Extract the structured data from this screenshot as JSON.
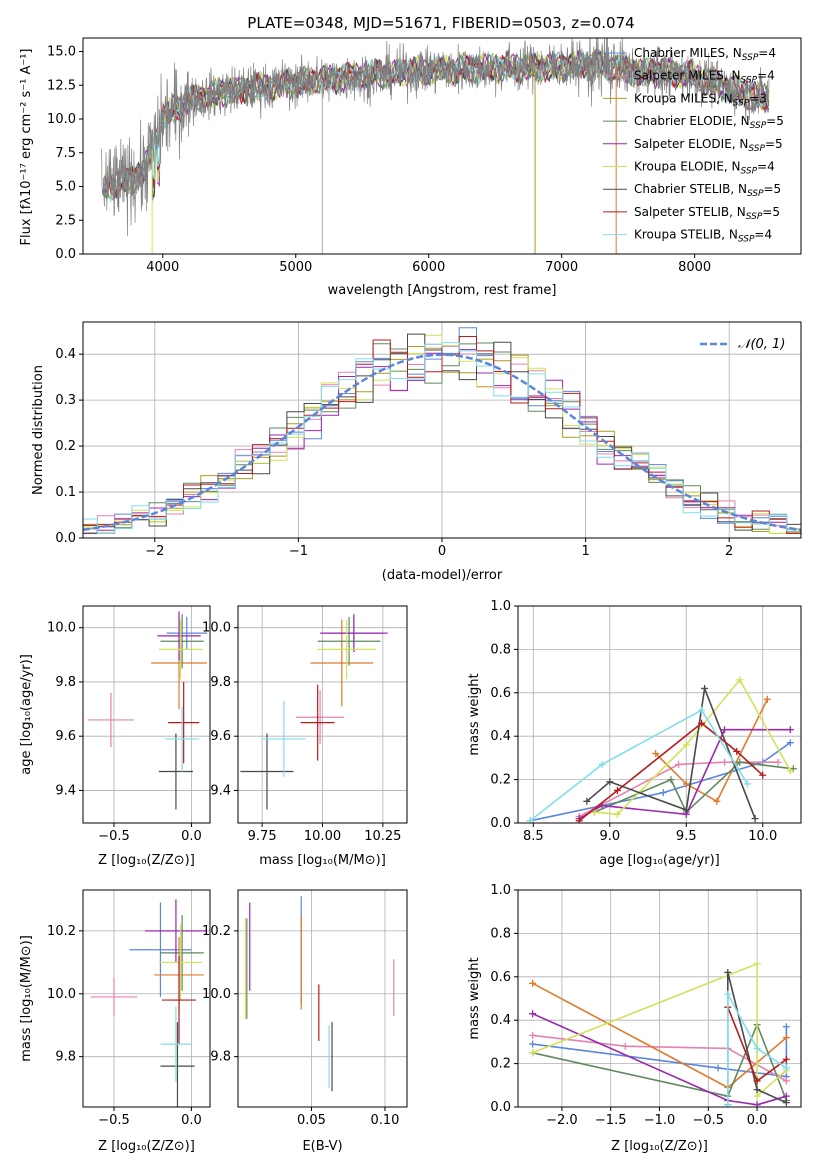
{
  "chart_data": [
    {
      "id": "spectrum",
      "type": "line",
      "title": "PLATE=0348, MJD=51671, FIBERID=0503, z=0.074",
      "xlabel": "wavelength [Angstrom, rest frame]",
      "ylabel": "Flux [fλ10⁻¹⁷ erg cm⁻² s⁻¹ A⁻¹]",
      "xlim": [
        3400,
        8800
      ],
      "ylim": [
        0,
        16
      ],
      "xticks": [
        "4000",
        "5000",
        "6000",
        "7000",
        "8000"
      ],
      "yticks": [
        "0.0",
        "2.5",
        "5.0",
        "7.5",
        "10.0",
        "12.5",
        "15.0"
      ],
      "grid": false,
      "legend_position": "right",
      "data_color": "#808080",
      "continuum": {
        "x": [
          3550,
          3700,
          3850,
          3950,
          4000,
          4100,
          4200,
          4300,
          4500,
          4800,
          5000,
          5300,
          5600,
          6000,
          6500,
          7000,
          7300,
          7500,
          7800,
          8000,
          8200,
          8500
        ],
        "y": [
          5.0,
          5.3,
          6.0,
          8.5,
          10.0,
          10.8,
          11.4,
          11.6,
          12.1,
          12.4,
          12.7,
          13.0,
          13.3,
          13.6,
          13.8,
          13.9,
          14.0,
          13.6,
          13.4,
          13.2,
          12.4,
          11.6
        ]
      },
      "series": [
        {
          "name": "Chabrier MILES, N$_{SSP}$=4",
          "label_main": "Chabrier MILES, N",
          "label_sub": "SSP",
          "label_tail": "=4",
          "color": "#5b86e0"
        },
        {
          "name": "Salpeter MILES, N$_{SSP}$=4",
          "label_main": "Salpeter MILES, N",
          "label_sub": "SSP",
          "label_tail": "=4",
          "color": "#e680b0"
        },
        {
          "name": "Kroupa MILES, N$_{SSP}$=3",
          "label_main": "Kroupa MILES, N",
          "label_sub": "SSP",
          "label_tail": "=3",
          "color": "#b09a1f"
        },
        {
          "name": "Chabrier ELODIE, N$_{SSP}$=5",
          "label_main": "Chabrier ELODIE, N",
          "label_sub": "SSP",
          "label_tail": "=5",
          "color": "#5e8a5e"
        },
        {
          "name": "Salpeter ELODIE, N$_{SSP}$=5",
          "label_main": "Salpeter ELODIE, N",
          "label_sub": "SSP",
          "label_tail": "=5",
          "color": "#9c27b0"
        },
        {
          "name": "Kroupa ELODIE, N$_{SSP}$=4",
          "label_main": "Kroupa ELODIE, N",
          "label_sub": "SSP",
          "label_tail": "=4",
          "color": "#d4e157"
        },
        {
          "name": "Chabrier STELIB, N$_{SSP}$=5",
          "label_main": "Chabrier STELIB, N",
          "label_sub": "SSP",
          "label_tail": "=5",
          "color": "#4a4a4a"
        },
        {
          "name": "Salpeter STELIB, N$_{SSP}$=5",
          "label_main": "Salpeter STELIB, N",
          "label_sub": "SSP",
          "label_tail": "=5",
          "color": "#b71c1c"
        },
        {
          "name": "Kroupa STELIB, N$_{SSP}$=4",
          "label_main": "Kroupa STELIB, N",
          "label_sub": "SSP",
          "label_tail": "=4",
          "color": "#80deea"
        }
      ]
    },
    {
      "id": "residuals",
      "type": "line",
      "xlabel": "(data-model)/error",
      "ylabel": "Normed distribution",
      "xlim": [
        -2.5,
        2.5
      ],
      "ylim": [
        0,
        0.47
      ],
      "xticks": [
        "−2",
        "−1",
        "0",
        "1",
        "2"
      ],
      "yticks": [
        "0.0",
        "0.1",
        "0.2",
        "0.3",
        "0.4"
      ],
      "grid": true,
      "legend_position": "top-right",
      "gaussian_label": "𝒩(0, 1)",
      "gaussian_color": "#5b86e0",
      "bin_width": 0.12
    },
    {
      "id": "age_vs_Z",
      "type": "scatter",
      "xlabel": "Z [log₁₀(Z/Z⊙)]",
      "ylabel": "age  [log₁₀(age/yr)]",
      "xlim": [
        -0.7,
        0.12
      ],
      "ylim": [
        9.28,
        10.08
      ],
      "xticks": [
        -0.5,
        0.0
      ],
      "xtick_labels": [
        "−0.5",
        "0.0"
      ],
      "yticks": [
        9.4,
        9.6,
        9.8,
        10.0
      ],
      "ytick_labels": [
        "9.4",
        "9.6",
        "9.8",
        "10.0"
      ],
      "grid": true,
      "points": [
        {
          "x": -0.03,
          "y": 9.98,
          "xerr": 0.13,
          "yerr": 0.06,
          "color": "#5b86e0"
        },
        {
          "x": -0.52,
          "y": 9.66,
          "xerr": 0.15,
          "yerr": 0.1,
          "color": "#e680b0"
        },
        {
          "x": -0.08,
          "y": 9.87,
          "xerr": 0.18,
          "yerr": 0.17,
          "color": "#e07a2a"
        },
        {
          "x": -0.06,
          "y": 9.95,
          "xerr": 0.14,
          "yerr": 0.1,
          "color": "#5e8a5e"
        },
        {
          "x": -0.08,
          "y": 9.97,
          "xerr": 0.14,
          "yerr": 0.09,
          "color": "#9c27b0"
        },
        {
          "x": -0.07,
          "y": 9.92,
          "xerr": 0.14,
          "yerr": 0.11,
          "color": "#d4e157"
        },
        {
          "x": -0.1,
          "y": 9.47,
          "xerr": 0.11,
          "yerr": 0.14,
          "color": "#4a4a4a"
        },
        {
          "x": -0.05,
          "y": 9.65,
          "xerr": 0.1,
          "yerr": 0.15,
          "color": "#b71c1c"
        },
        {
          "x": -0.06,
          "y": 9.59,
          "xerr": 0.11,
          "yerr": 0.12,
          "color": "#80deea"
        }
      ]
    },
    {
      "id": "age_vs_mass",
      "type": "scatter",
      "xlabel": "mass [log₁₀(M/M⊙)]",
      "xlim": [
        9.65,
        10.35
      ],
      "ylim": [
        9.28,
        10.08
      ],
      "xticks": [
        9.75,
        10.0,
        10.25
      ],
      "xtick_labels": [
        "9.75",
        "10.00",
        "10.25"
      ],
      "yticks": [
        9.4,
        9.6,
        9.8,
        10.0
      ],
      "ytick_labels": [
        "9.4",
        "9.6",
        "9.8",
        "10.0"
      ],
      "grid": true,
      "points": [
        {
          "x": 10.13,
          "y": 9.98,
          "xerr": 0.12,
          "yerr": 0.06,
          "color": "#5b86e0"
        },
        {
          "x": 9.99,
          "y": 9.67,
          "xerr": 0.1,
          "yerr": 0.1,
          "color": "#e680b0"
        },
        {
          "x": 10.08,
          "y": 9.87,
          "xerr": 0.13,
          "yerr": 0.16,
          "color": "#e07a2a"
        },
        {
          "x": 10.11,
          "y": 9.95,
          "xerr": 0.13,
          "yerr": 0.09,
          "color": "#5e8a5e"
        },
        {
          "x": 10.13,
          "y": 9.98,
          "xerr": 0.14,
          "yerr": 0.07,
          "color": "#9c27b0"
        },
        {
          "x": 10.1,
          "y": 9.92,
          "xerr": 0.12,
          "yerr": 0.11,
          "color": "#d4e157"
        },
        {
          "x": 9.77,
          "y": 9.47,
          "xerr": 0.11,
          "yerr": 0.14,
          "color": "#4a4a4a"
        },
        {
          "x": 9.98,
          "y": 9.65,
          "xerr": 0.07,
          "yerr": 0.14,
          "color": "#b71c1c"
        },
        {
          "x": 9.84,
          "y": 9.59,
          "xerr": 0.09,
          "yerr": 0.14,
          "color": "#80deea"
        }
      ]
    },
    {
      "id": "weight_vs_age",
      "type": "line",
      "xlabel": "age  [log₁₀(age/yr)]",
      "ylabel": "mass weight",
      "xlim": [
        8.4,
        10.25
      ],
      "ylim": [
        0,
        1
      ],
      "xticks": [
        8.5,
        9.0,
        9.5,
        10.0
      ],
      "xtick_labels": [
        "8.5",
        "9.0",
        "9.5",
        "10.0"
      ],
      "yticks": [
        0,
        0.2,
        0.4,
        0.6,
        0.8,
        1.0
      ],
      "ytick_labels": [
        "0.0",
        "0.2",
        "0.4",
        "0.6",
        "0.8",
        "1.0"
      ],
      "grid": true,
      "series": [
        {
          "color": "#5b86e0",
          "x": [
            8.48,
            9.35,
            10.0,
            10.18
          ],
          "y": [
            0.01,
            0.14,
            0.28,
            0.37
          ]
        },
        {
          "color": "#e680b0",
          "x": [
            8.8,
            9.45,
            9.75,
            10.1
          ],
          "y": [
            0.03,
            0.27,
            0.28,
            0.28
          ]
        },
        {
          "color": "#e07a2a",
          "x": [
            9.3,
            9.5,
            9.7,
            10.03
          ],
          "y": [
            0.32,
            0.18,
            0.1,
            0.57
          ]
        },
        {
          "color": "#5e8a5e",
          "x": [
            8.9,
            9.4,
            9.5,
            9.85,
            10.2
          ],
          "y": [
            0.05,
            0.2,
            0.05,
            0.28,
            0.25
          ]
        },
        {
          "color": "#9c27b0",
          "x": [
            8.8,
            8.95,
            9.5,
            9.75,
            10.18
          ],
          "y": [
            0.02,
            0.08,
            0.04,
            0.43,
            0.43
          ]
        },
        {
          "color": "#d4e157",
          "x": [
            8.9,
            9.05,
            9.5,
            9.85,
            10.18
          ],
          "y": [
            0.05,
            0.04,
            0.36,
            0.66,
            0.24
          ]
        },
        {
          "color": "#4a4a4a",
          "x": [
            8.85,
            9.0,
            9.5,
            9.62,
            9.95
          ],
          "y": [
            0.1,
            0.19,
            0.06,
            0.62,
            0.02
          ]
        },
        {
          "color": "#b71c1c",
          "x": [
            8.8,
            9.05,
            9.6,
            9.83,
            10.0
          ],
          "y": [
            0.01,
            0.15,
            0.46,
            0.33,
            0.22
          ]
        },
        {
          "color": "#80deea",
          "x": [
            8.48,
            8.95,
            9.6,
            9.9
          ],
          "y": [
            0.01,
            0.27,
            0.52,
            0.18
          ]
        }
      ]
    },
    {
      "id": "mass_vs_Z",
      "type": "scatter",
      "xlabel": "Z [log₁₀(Z/Z⊙)]",
      "ylabel": "mass [log₁₀(M/M⊙)]",
      "xlim": [
        -0.7,
        0.12
      ],
      "ylim": [
        9.64,
        10.33
      ],
      "xticks": [
        -0.5,
        0.0
      ],
      "xtick_labels": [
        "−0.5",
        "0.0"
      ],
      "yticks": [
        9.8,
        10.0,
        10.2
      ],
      "ytick_labels": [
        "9.8",
        "10.0",
        "10.2"
      ],
      "grid": true,
      "points": [
        {
          "x": -0.2,
          "y": 10.14,
          "xerr": 0.2,
          "yerr": 0.15,
          "color": "#5b86e0"
        },
        {
          "x": -0.5,
          "y": 9.99,
          "xerr": 0.15,
          "yerr": 0.06,
          "color": "#e680b0"
        },
        {
          "x": -0.08,
          "y": 10.06,
          "xerr": 0.16,
          "yerr": 0.12,
          "color": "#e07a2a"
        },
        {
          "x": -0.06,
          "y": 10.13,
          "xerr": 0.14,
          "yerr": 0.12,
          "color": "#5e8a5e"
        },
        {
          "x": -0.1,
          "y": 10.2,
          "xerr": 0.2,
          "yerr": 0.1,
          "color": "#9c27b0"
        },
        {
          "x": -0.07,
          "y": 10.1,
          "xerr": 0.14,
          "yerr": 0.12,
          "color": "#d4e157"
        },
        {
          "x": -0.09,
          "y": 9.77,
          "xerr": 0.11,
          "yerr": 0.14,
          "color": "#4a4a4a"
        },
        {
          "x": -0.08,
          "y": 9.98,
          "xerr": 0.11,
          "yerr": 0.14,
          "color": "#b71c1c"
        },
        {
          "x": -0.1,
          "y": 9.84,
          "xerr": 0.1,
          "yerr": 0.12,
          "color": "#80deea"
        }
      ]
    },
    {
      "id": "mass_vs_ebv",
      "type": "scatter",
      "xlabel": "E(B-V)",
      "xlim": [
        0.0,
        0.115
      ],
      "ylim": [
        9.64,
        10.33
      ],
      "xticks": [
        0.05,
        0.1
      ],
      "xtick_labels": [
        "0.05",
        "0.10"
      ],
      "yticks": [
        9.8,
        10.0,
        10.2
      ],
      "ytick_labels": [
        "9.8",
        "10.0",
        "10.2"
      ],
      "grid": true,
      "points": [
        {
          "x": 0.043,
          "y": 10.14,
          "xerr": 0,
          "yerr": 0.17,
          "color": "#5b86e0"
        },
        {
          "x": 0.106,
          "y": 10.02,
          "xerr": 0,
          "yerr": 0.09,
          "color": "#e680b0"
        },
        {
          "x": 0.043,
          "y": 10.1,
          "xerr": 0,
          "yerr": 0.15,
          "color": "#e07a2a"
        },
        {
          "x": 0.006,
          "y": 10.08,
          "xerr": 0,
          "yerr": 0.16,
          "color": "#5e8a5e"
        },
        {
          "x": 0.008,
          "y": 10.15,
          "xerr": 0,
          "yerr": 0.14,
          "color": "#9c27b0"
        },
        {
          "x": 0.005,
          "y": 10.08,
          "xerr": 0,
          "yerr": 0.16,
          "color": "#d4e157"
        },
        {
          "x": 0.064,
          "y": 9.8,
          "xerr": 0,
          "yerr": 0.11,
          "color": "#4a4a4a"
        },
        {
          "x": 0.055,
          "y": 9.94,
          "xerr": 0,
          "yerr": 0.09,
          "color": "#b71c1c"
        },
        {
          "x": 0.062,
          "y": 9.8,
          "xerr": 0,
          "yerr": 0.1,
          "color": "#80deea"
        }
      ]
    },
    {
      "id": "weight_vs_Z",
      "type": "line",
      "xlabel": "Z [log₁₀(Z/Z⊙)]",
      "ylabel": "mass weight",
      "xlim": [
        -2.45,
        0.45
      ],
      "ylim": [
        0,
        1
      ],
      "xticks": [
        -2.0,
        -1.5,
        -1.0,
        -0.5,
        0.0
      ],
      "xtick_labels": [
        "−2.0",
        "−1.5",
        "−1.0",
        "−0.5",
        "0.0"
      ],
      "yticks": [
        0,
        0.2,
        0.4,
        0.6,
        0.8,
        1.0
      ],
      "ytick_labels": [
        "0.0",
        "0.2",
        "0.4",
        "0.6",
        "0.8",
        "1.0"
      ],
      "grid": true,
      "series": [
        {
          "color": "#5b86e0",
          "x": [
            -2.3,
            -0.4,
            0.3,
            0.3
          ],
          "y": [
            0.29,
            0.18,
            0.14,
            0.37
          ]
        },
        {
          "color": "#e680b0",
          "x": [
            -2.3,
            -1.35,
            -0.3,
            0.3
          ],
          "y": [
            0.33,
            0.28,
            0.27,
            0.12
          ]
        },
        {
          "color": "#e07a2a",
          "x": [
            -2.3,
            -0.3,
            0.3
          ],
          "y": [
            0.57,
            0.09,
            0.32
          ]
        },
        {
          "color": "#5e8a5e",
          "x": [
            -2.3,
            -0.3,
            0.0,
            0.3
          ],
          "y": [
            0.25,
            0.05,
            0.38,
            0.03
          ]
        },
        {
          "color": "#9c27b0",
          "x": [
            -2.3,
            -0.3,
            0.0,
            0.3
          ],
          "y": [
            0.43,
            0.03,
            0.01,
            0.05
          ]
        },
        {
          "color": "#d4e157",
          "x": [
            -2.3,
            0.0,
            0.0,
            0.3
          ],
          "y": [
            0.25,
            0.66,
            0.05,
            0.17
          ]
        },
        {
          "color": "#4a4a4a",
          "x": [
            -0.3,
            -0.3,
            0.0,
            0.3
          ],
          "y": [
            0.01,
            0.62,
            0.08,
            0.02
          ]
        },
        {
          "color": "#b71c1c",
          "x": [
            -0.3,
            0.0,
            0.3
          ],
          "y": [
            0.46,
            0.12,
            0.22
          ]
        },
        {
          "color": "#80deea",
          "x": [
            -0.3,
            -0.3,
            0.0,
            0.3
          ],
          "y": [
            0.01,
            0.52,
            0.27,
            0.18
          ]
        }
      ]
    }
  ]
}
